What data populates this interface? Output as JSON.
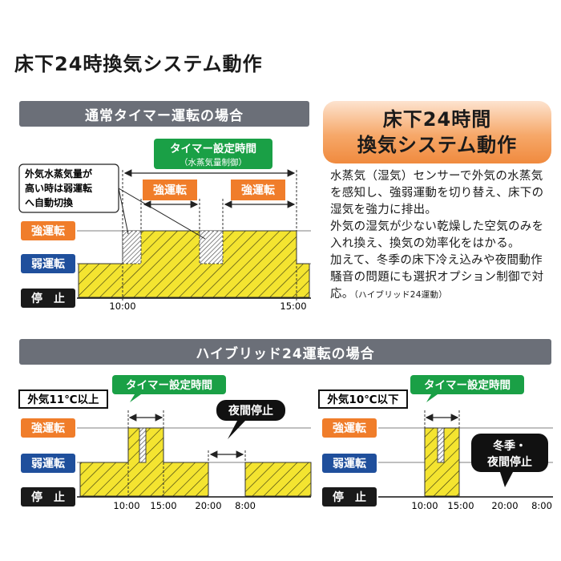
{
  "page_title": "床下24時換気システム動作",
  "timer_section": {
    "header": "通常タイマー運転の場合",
    "timer_label": "タイマー設定時間",
    "timer_sub": "（水蒸気量制御）",
    "strong_left": "強運転",
    "strong_right": "強運転",
    "callout_lines": [
      "外気水蒸気量が",
      "高い時は弱運転",
      "へ自動切換"
    ],
    "levels": [
      "強運転",
      "弱運転",
      "停　止"
    ],
    "times": [
      "10:00",
      "15:00"
    ]
  },
  "orange_box": {
    "line1": "床下24時間",
    "line2": "換気システム動作"
  },
  "description": {
    "para1": "水蒸気（湿気）センサーで外気の水蒸気を感知し、強弱運動を切り替え、床下の湿気を強力に排出。",
    "para2": "外気の湿気が少ない乾燥した空気のみを入れ換え、換気の効率化をはかる。",
    "para3": "加えて、冬季の床下冷え込みや夜間動作騒音の問題にも選択オプション制御で対応。",
    "para3_note": "（ハイブリッド24運動）"
  },
  "hybrid_section": {
    "header": "ハイブリッド24運転の場合",
    "left": {
      "condition": "外気11℃以上",
      "timer_label": "タイマー設定時間",
      "night_label": "夜間停止",
      "levels": [
        "強運転",
        "弱運転",
        "停　止"
      ],
      "times": [
        "10:00",
        "15:00",
        "20:00",
        "8:00"
      ]
    },
    "right": {
      "condition": "外気10℃以下",
      "timer_label": "タイマー設定時間",
      "callout_lines": [
        "冬季・",
        "夜間停止"
      ],
      "levels": [
        "強運転",
        "弱運転",
        "停　止"
      ],
      "times": [
        "10:00",
        "15:00",
        "20:00",
        "8:00"
      ]
    }
  },
  "colors": {
    "strong": "#f07d2a",
    "weak": "#1f4f9c",
    "stop": "#1a1a1a",
    "timer_green": "#1aa046",
    "fill_yellow": "#f4e430",
    "header_gray": "#6b6f78"
  }
}
